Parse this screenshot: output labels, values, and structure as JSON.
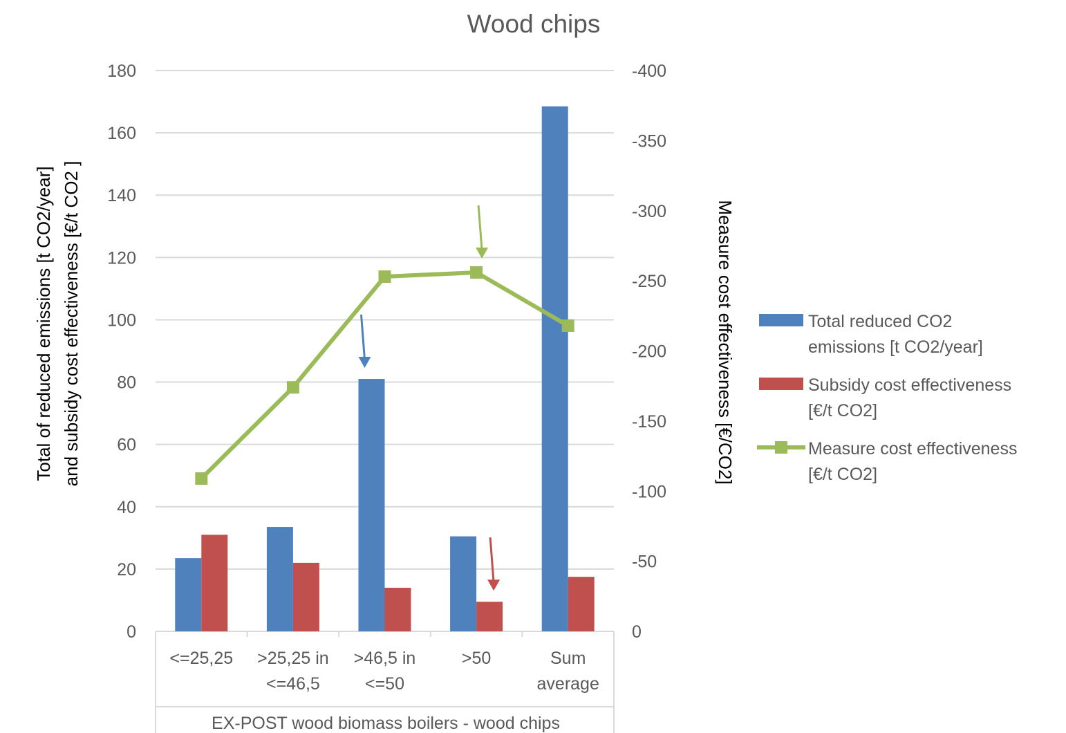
{
  "chart_data": {
    "type": "bar",
    "title": "Wood chips",
    "ylabel_line1": "Total of reduced emissions [t CO2/year]",
    "ylabel_line2": "and subsidy cost effectiveness  [€/t CO2 ]",
    "y2label": "Measure cost effectiveness  [€/CO2]",
    "xlabel": "EX-POST wood biomass boilers - wood chips",
    "categories": [
      [
        "<=25,25"
      ],
      [
        ">25,25 in",
        "<=46,5"
      ],
      [
        ">46,5 in",
        "<=50"
      ],
      [
        ">50"
      ],
      [
        "Sum",
        "average"
      ]
    ],
    "ylim": [
      0,
      180
    ],
    "yticks": [
      "0",
      "20",
      "40",
      "60",
      "80",
      "100",
      "120",
      "140",
      "160",
      "180"
    ],
    "y2lim": [
      0,
      -400
    ],
    "y2ticks": [
      "0",
      "-50",
      "-100",
      "-150",
      "-200",
      "-250",
      "-300",
      "-350",
      "-400"
    ],
    "grid": true,
    "legend_position": "right",
    "series": [
      {
        "name": "Total reduced CO2 emissions [t CO2/year]",
        "legend_lines": [
          "Total reduced CO2",
          "emissions [t CO2/year]"
        ],
        "kind": "bar",
        "axis": "left",
        "color": "#4F81BD",
        "values": [
          23.5,
          33.5,
          81,
          30.5,
          168.5
        ]
      },
      {
        "name": "Subsidy cost effectiveness [€/t CO2]",
        "legend_lines": [
          "Subsidy cost effectiveness",
          "[€/t CO2]"
        ],
        "kind": "bar",
        "axis": "left",
        "color": "#C0504D",
        "values": [
          31,
          22,
          14,
          9.5,
          17.5
        ]
      },
      {
        "name": "Measure cost effectiveness [€/t CO2]",
        "legend_lines": [
          "Measure cost effectiveness",
          "[€/t CO2]"
        ],
        "kind": "line",
        "axis": "right",
        "color": "#9BBB59",
        "values": [
          -109,
          -174,
          -253,
          -256,
          -218
        ]
      }
    ],
    "annotations": [
      {
        "type": "arrow",
        "color": "#4F81BD",
        "category_index": 2,
        "points_to": "Total reduced CO2 emissions [t CO2/year]"
      },
      {
        "type": "arrow",
        "color": "#9BBB59",
        "category_index": 3,
        "points_to": "Measure cost effectiveness [€/t CO2]"
      },
      {
        "type": "arrow",
        "color": "#C0504D",
        "category_index": 3,
        "points_to": "Subsidy cost effectiveness [€/t CO2]"
      }
    ]
  }
}
